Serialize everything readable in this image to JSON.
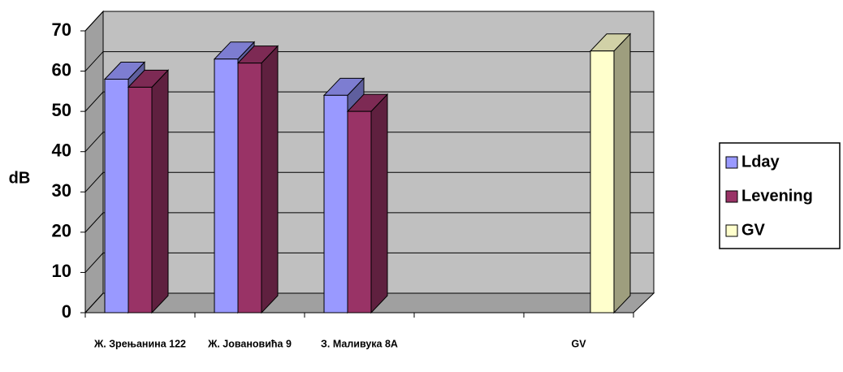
{
  "chart_data": {
    "type": "bar3d",
    "categories": [
      "Ж. Зрењанина 122",
      "Ж. Јовановића 9",
      "З. Маливука 8А",
      null,
      "GV"
    ],
    "series": [
      {
        "name": "Lday",
        "color": "#9999ff",
        "values": [
          58,
          63,
          54,
          null,
          null
        ]
      },
      {
        "name": "Levening",
        "color": "#993366",
        "values": [
          56,
          62,
          50,
          null,
          null
        ]
      },
      {
        "name": "GV",
        "color": "#ffffcc",
        "values": [
          null,
          null,
          null,
          null,
          65
        ]
      }
    ],
    "ylabel": "dB",
    "ylim": [
      0,
      70
    ],
    "yticks": [
      0,
      10,
      20,
      30,
      40,
      50,
      60,
      70
    ],
    "grid": true,
    "legend": "right"
  }
}
